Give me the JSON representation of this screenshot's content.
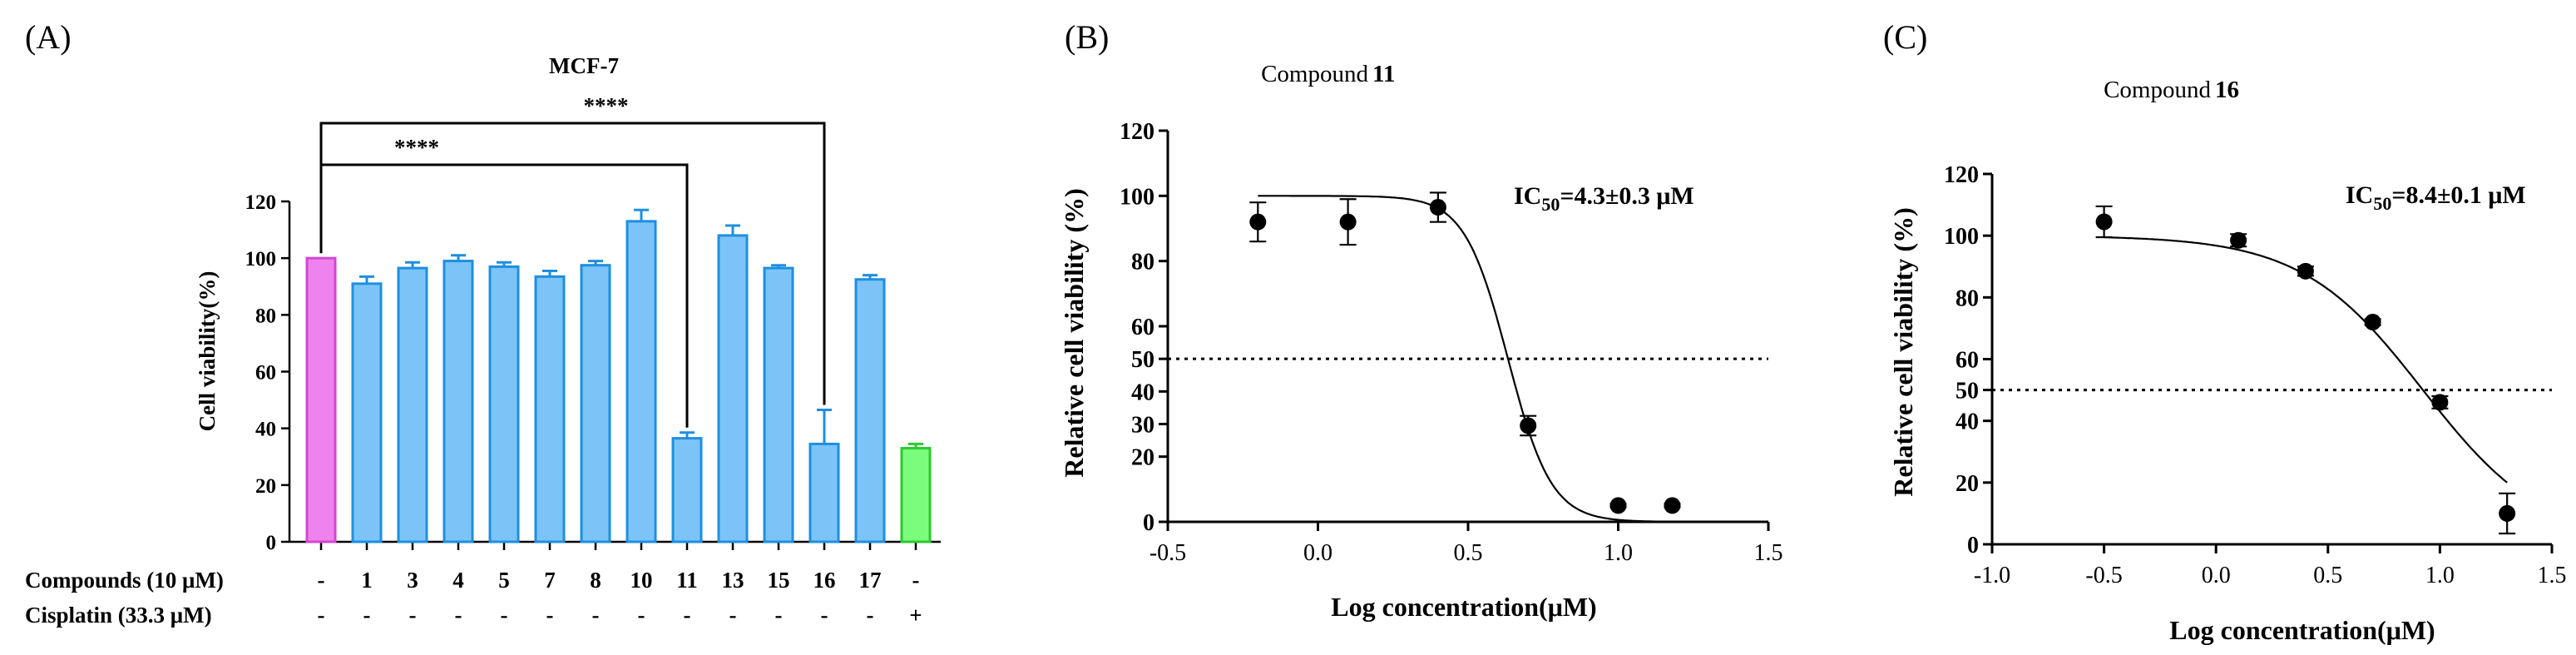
{
  "panels": {
    "a": {
      "panel_label": "(A)",
      "row_labels": [
        "Compounds (10 μM)",
        "Cisplatin (33.3 μM)"
      ],
      "compound_row": [
        "-",
        "1",
        "3",
        "4",
        "5",
        "7",
        "8",
        "10",
        "11",
        "13",
        "15",
        "16",
        "17",
        "-"
      ],
      "cisplatin_row": [
        "-",
        "-",
        "-",
        "-",
        "-",
        "-",
        "-",
        "-",
        "-",
        "-",
        "-",
        "-",
        "-",
        "+"
      ],
      "significance": [
        "****",
        "****"
      ]
    },
    "b": {
      "panel_label": "(B)",
      "ic50_text": "IC50=4.3±0.3 μM"
    },
    "c": {
      "panel_label": "(C)",
      "ic50_text": "IC50=8.4±0.1 μM"
    }
  },
  "colors": {
    "control_bar": "#ee82ee",
    "control_edge": "#d048d0",
    "compound_bar": "#7cc4f8",
    "compound_edge": "#1e8fe0",
    "cisplatin_bar": "#7cfc7c",
    "cisplatin_edge": "#2ec82e"
  },
  "chart_data": [
    {
      "type": "bar",
      "title": "MCF-7",
      "xlabel": "",
      "ylabel": "Cell viability(%)",
      "ylim": [
        0,
        120
      ],
      "yticks": [
        0,
        20,
        40,
        60,
        80,
        100,
        120
      ],
      "categories": [
        "-",
        "1",
        "3",
        "4",
        "5",
        "7",
        "8",
        "10",
        "11",
        "13",
        "15",
        "16",
        "17",
        "-"
      ],
      "values": [
        100,
        91,
        96.5,
        99,
        97,
        93.5,
        97.5,
        113,
        36.5,
        108,
        96.5,
        34.5,
        92.5,
        33
      ],
      "errors": [
        0,
        2.5,
        2,
        2,
        1.5,
        2,
        1.5,
        4,
        2,
        3.5,
        1,
        12,
        1.5,
        1.5
      ],
      "significance": [
        {
          "from": 0,
          "to": 8,
          "label": "****"
        },
        {
          "from": 0,
          "to": 11,
          "label": "****"
        }
      ]
    },
    {
      "type": "scatter",
      "title": "Compound 11",
      "xlabel": "Log concentration(μM)",
      "ylabel": "Relative cell viability (%)",
      "xlim": [
        -0.5,
        1.5
      ],
      "ylim": [
        0,
        120
      ],
      "xticks": [
        -0.5,
        0.0,
        0.5,
        1.0,
        1.5
      ],
      "xtick_labels": [
        "-0.5",
        "0.0",
        "0.5",
        "1.0",
        "1.5"
      ],
      "yticks": [
        0,
        20,
        30,
        40,
        50,
        60,
        80,
        100,
        120
      ],
      "reference_line": 50,
      "points": [
        {
          "x": -0.2,
          "y": 92,
          "err": 6
        },
        {
          "x": 0.1,
          "y": 92,
          "err": 7
        },
        {
          "x": 0.4,
          "y": 96.5,
          "err": 4.5
        },
        {
          "x": 0.7,
          "y": 29.5,
          "err": 3
        },
        {
          "x": 1.0,
          "y": 5,
          "err": 0.5
        },
        {
          "x": 1.18,
          "y": 5,
          "err": 0.5
        }
      ],
      "fit": {
        "top": 100,
        "bottom": 0,
        "log_ic50": 0.633,
        "hill": 6
      },
      "annotation": "IC50=4.3±0.3 μM"
    },
    {
      "type": "scatter",
      "title": "Compound 16",
      "xlabel": "Log concentration(μM)",
      "ylabel": "Relative cell viability (%)",
      "xlim": [
        -1.0,
        1.5
      ],
      "ylim": [
        0,
        120
      ],
      "xticks": [
        -1.0,
        -0.5,
        0.0,
        0.5,
        1.0,
        1.5
      ],
      "xtick_labels": [
        "-1.0",
        "-0.5",
        "0.0",
        "0.5",
        "1.0",
        "1.5"
      ],
      "yticks": [
        0,
        20,
        40,
        50,
        60,
        80,
        100,
        120
      ],
      "reference_line": 50,
      "points": [
        {
          "x": -0.5,
          "y": 104.5,
          "err": 5
        },
        {
          "x": 0.1,
          "y": 98.5,
          "err": 2
        },
        {
          "x": 0.4,
          "y": 88.5,
          "err": 1.5
        },
        {
          "x": 0.7,
          "y": 72,
          "err": 1
        },
        {
          "x": 1.0,
          "y": 46,
          "err": 2
        },
        {
          "x": 1.3,
          "y": 10,
          "err": 6.5
        }
      ],
      "fit": {
        "top": 100,
        "bottom": 0,
        "log_ic50": 0.924,
        "hill": 1.6
      },
      "annotation": "IC50=8.4±0.1 μM"
    }
  ]
}
